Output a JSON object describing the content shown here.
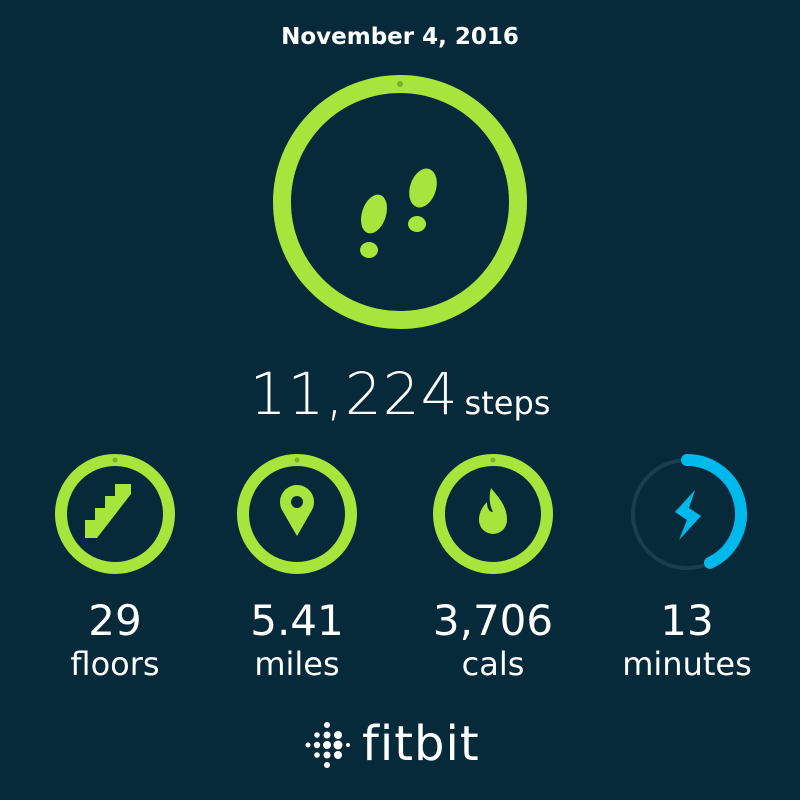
{
  "date": "November 4, 2016",
  "steps": {
    "value": "11,224",
    "unit": "steps",
    "icon": "footprints-icon",
    "progress": 1.0
  },
  "stats": [
    {
      "value": "29",
      "unit": "floors",
      "icon": "stairs-icon",
      "progress": 1.0,
      "color": "#a6e63c"
    },
    {
      "value": "5.41",
      "unit": "miles",
      "icon": "location-pin-icon",
      "progress": 1.0,
      "color": "#a6e63c"
    },
    {
      "value": "3,706",
      "unit": "cals",
      "icon": "flame-icon",
      "progress": 1.0,
      "color": "#a6e63c"
    },
    {
      "value": "13",
      "unit": "minutes",
      "icon": "lightning-icon",
      "progress": 0.43,
      "color": "#00b9ec"
    }
  ],
  "brand": {
    "name": "fitbit"
  },
  "colors": {
    "background": "#062a3a",
    "goal_met": "#a6e63c",
    "active_minutes": "#00b9ec",
    "track": "#1b3d4c"
  }
}
